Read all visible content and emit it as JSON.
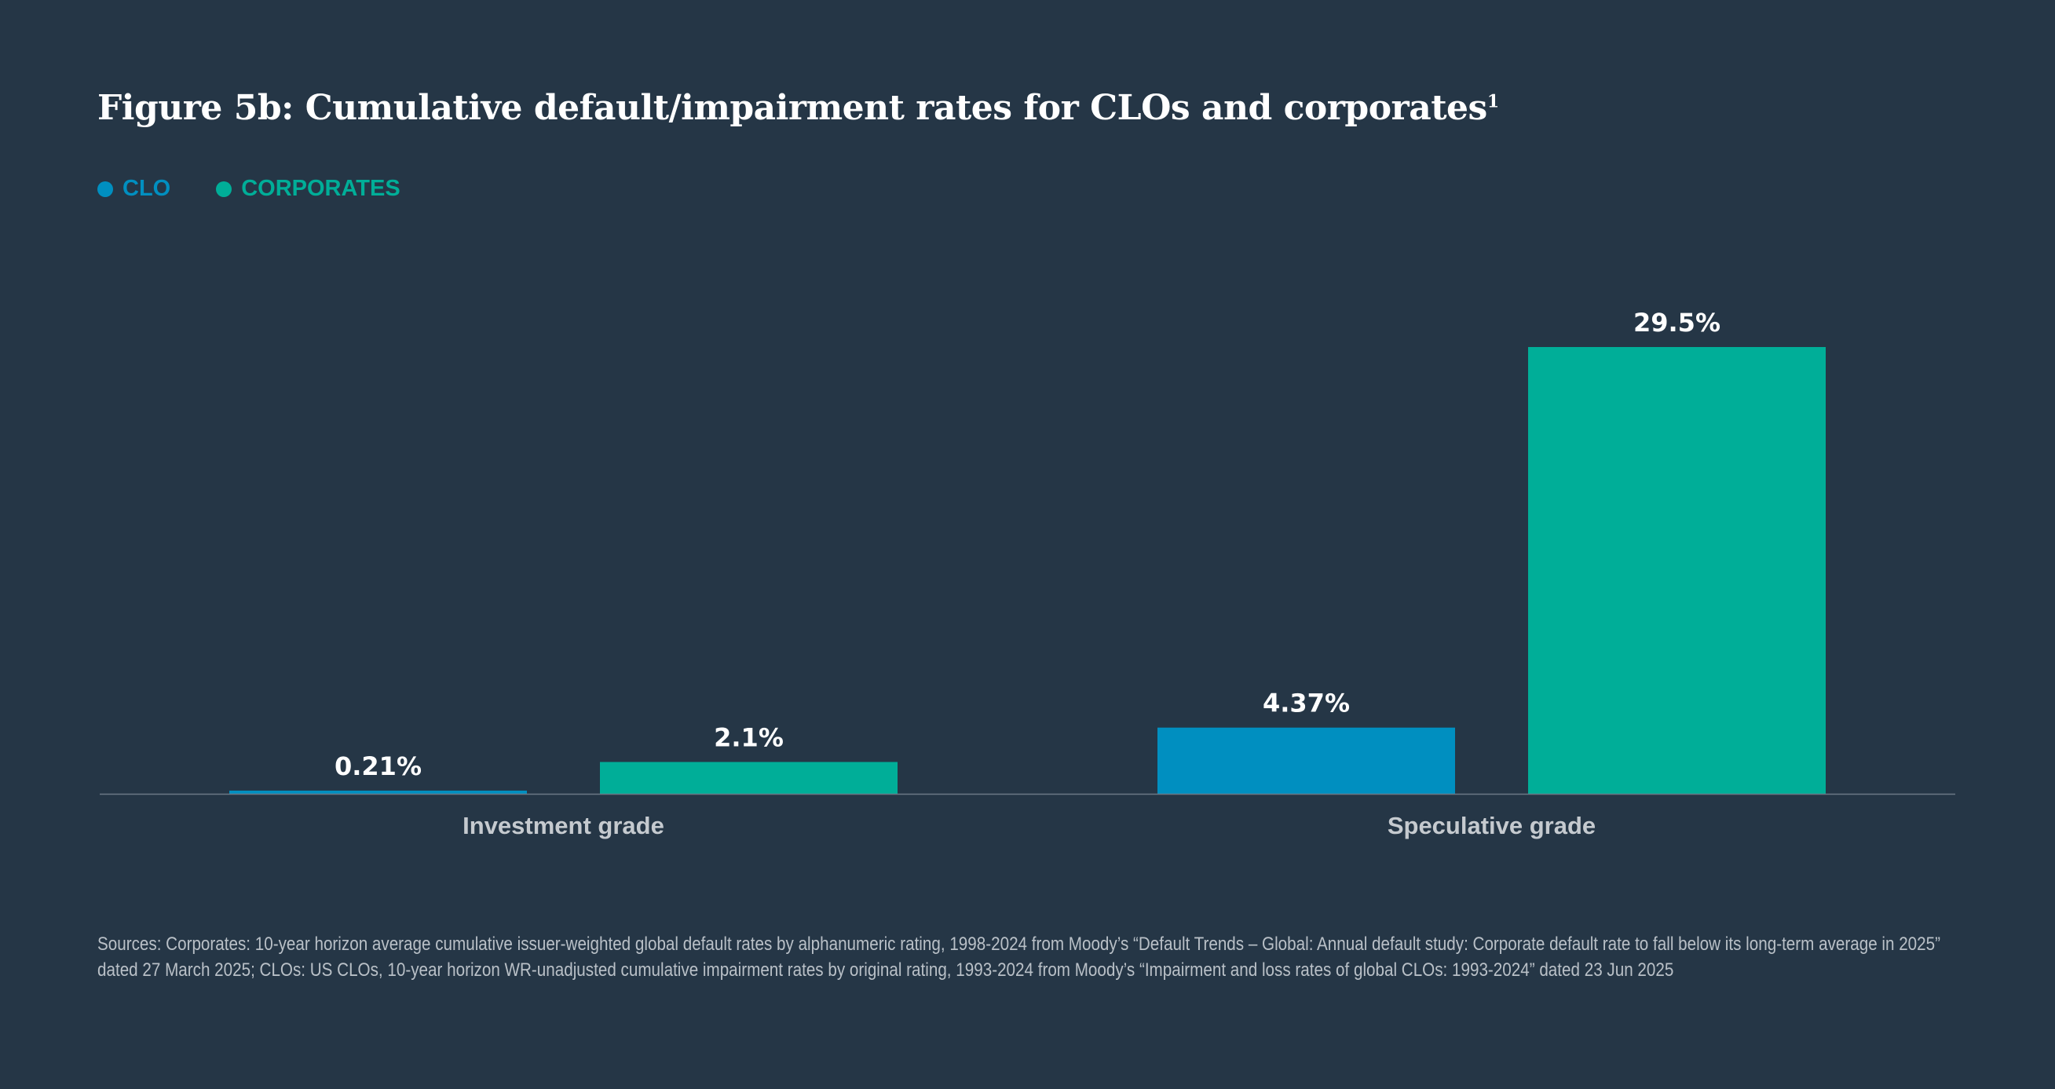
{
  "title": "Figure 5b: Cumulative default/impairment rates for CLOs and corporates",
  "title_superscript": "1",
  "colors": {
    "background": "#253646",
    "CLO": "#008fc0",
    "CORPORATES": "#00ae98"
  },
  "chart_data": {
    "type": "bar",
    "categories": [
      "Investment grade",
      "Speculative grade"
    ],
    "series": [
      {
        "name": "CLO",
        "values": [
          0.21,
          4.37
        ],
        "labels": [
          "0.21%",
          "4.37%"
        ],
        "color": "#008fc0"
      },
      {
        "name": "CORPORATES",
        "values": [
          2.1,
          29.5
        ],
        "labels": [
          "2.1%",
          "29.5%"
        ],
        "color": "#00ae98"
      }
    ],
    "ylim": [
      0,
      29.5
    ],
    "grid": false,
    "legend": "top-left"
  },
  "footnote": "Sources: Corporates: 10-year horizon average cumulative issuer-weighted global default rates by alphanumeric rating, 1998-2024 from Moody’s “Default Trends – Global: Annual default study: Corporate default rate to fall below its long-term average in 2025” dated 27 March 2025; CLOs: US CLOs, 10-year horizon WR-unadjusted cumulative impairment rates by original rating, 1993-2024 from Moody’s “Impairment and loss rates of global CLOs: 1993-2024” dated 23 Jun 2025"
}
